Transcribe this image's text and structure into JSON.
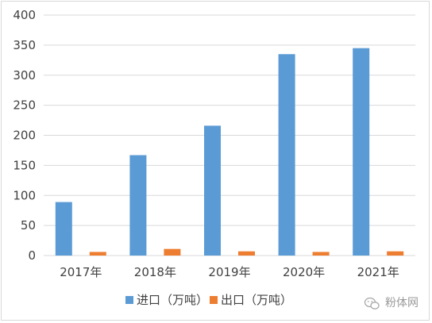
{
  "chart_data": {
    "type": "bar",
    "categories": [
      "2017年",
      "2018年",
      "2019年",
      "2020年",
      "2021年"
    ],
    "series": [
      {
        "name": "进口（万吨）",
        "color": "#5b9bd5",
        "values": [
          89,
          167,
          216,
          335,
          345
        ]
      },
      {
        "name": "出口（万吨）",
        "color": "#ed7d31",
        "values": [
          6,
          11,
          7,
          6,
          7
        ]
      }
    ],
    "ylim": [
      0,
      400
    ],
    "yticks": [
      0,
      50,
      100,
      150,
      200,
      250,
      300,
      350,
      400
    ],
    "grid": true,
    "legend_position": "bottom"
  },
  "watermark": {
    "text": "粉体网",
    "icon": "wechat-icon"
  }
}
